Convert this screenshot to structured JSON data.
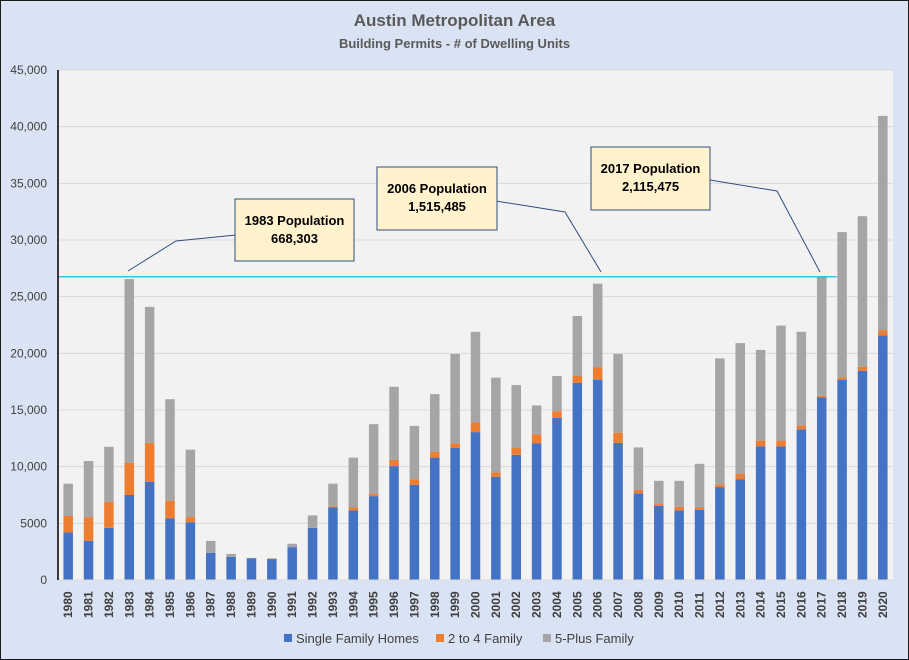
{
  "chart_data": {
    "type": "bar",
    "stacked": true,
    "title": "Austin Metropolitan Area",
    "subtitle": "Building Permits - # of Dwelling Units",
    "xlabel": "",
    "ylabel": "",
    "ylim": [
      0,
      45000
    ],
    "yticks": [
      0,
      5000,
      10000,
      15000,
      20000,
      25000,
      30000,
      35000,
      40000,
      45000
    ],
    "ytick_labels": [
      "0",
      "5000",
      "10,000",
      "15,000",
      "20,000",
      "25,000",
      "30,000",
      "35,000",
      "40,000",
      "45,000"
    ],
    "grid": true,
    "legend_position": "bottom",
    "categories": [
      "1980",
      "1981",
      "1982",
      "1983",
      "1984",
      "1985",
      "1986",
      "1987",
      "1988",
      "1989",
      "1990",
      "1991",
      "1992",
      "1993",
      "1994",
      "1995",
      "1996",
      "1997",
      "1998",
      "1999",
      "2000",
      "2001",
      "2002",
      "2003",
      "2004",
      "2005",
      "2006",
      "2007",
      "2008",
      "2009",
      "2010",
      "2011",
      "2012",
      "2013",
      "2014",
      "2015",
      "2016",
      "2017",
      "2018",
      "2019",
      "2020"
    ],
    "series": [
      {
        "name": "Single Family Homes",
        "color": "#4472c4",
        "values": [
          4200,
          3450,
          4600,
          7500,
          8650,
          5450,
          5100,
          2400,
          2050,
          1900,
          1850,
          2900,
          4600,
          6400,
          6150,
          7400,
          10050,
          8400,
          10800,
          11650,
          13050,
          9100,
          11050,
          12050,
          14300,
          17400,
          17650,
          12100,
          7650,
          6550,
          6150,
          6200,
          8200,
          8900,
          11800,
          11800,
          13300,
          16100,
          17650,
          18450,
          21600
        ]
      },
      {
        "name": "2 to 4 Family",
        "color": "#ed7d31",
        "values": [
          1450,
          2100,
          2300,
          2850,
          3450,
          1550,
          450,
          0,
          0,
          0,
          50,
          0,
          0,
          100,
          250,
          200,
          550,
          500,
          500,
          400,
          850,
          400,
          600,
          800,
          600,
          600,
          1100,
          900,
          300,
          150,
          300,
          200,
          250,
          450,
          500,
          500,
          350,
          150,
          250,
          350,
          450
        ]
      },
      {
        "name": "5-Plus Family",
        "color": "#a5a5a5",
        "values": [
          2850,
          4950,
          4850,
          16200,
          12000,
          8950,
          5950,
          1050,
          250,
          50,
          0,
          300,
          1100,
          2000,
          4400,
          6150,
          6450,
          4700,
          5100,
          7900,
          8000,
          8350,
          5550,
          2550,
          3100,
          5300,
          7400,
          6950,
          3750,
          2050,
          2300,
          3850,
          11100,
          11550,
          8000,
          10150,
          8250,
          10500,
          12800,
          13300,
          18900
        ]
      }
    ],
    "reference_line": {
      "value": 26750,
      "color": "#00b0f0",
      "from": "1980",
      "to": "2017"
    },
    "annotations": [
      {
        "line1": "1983 Population",
        "line2": "668,303",
        "target": "1983"
      },
      {
        "line1": "2006 Population",
        "line2": "1,515,485",
        "target": "2006"
      },
      {
        "line1": "2017 Population",
        "line2": "2,115,475",
        "target": "2017"
      }
    ]
  }
}
